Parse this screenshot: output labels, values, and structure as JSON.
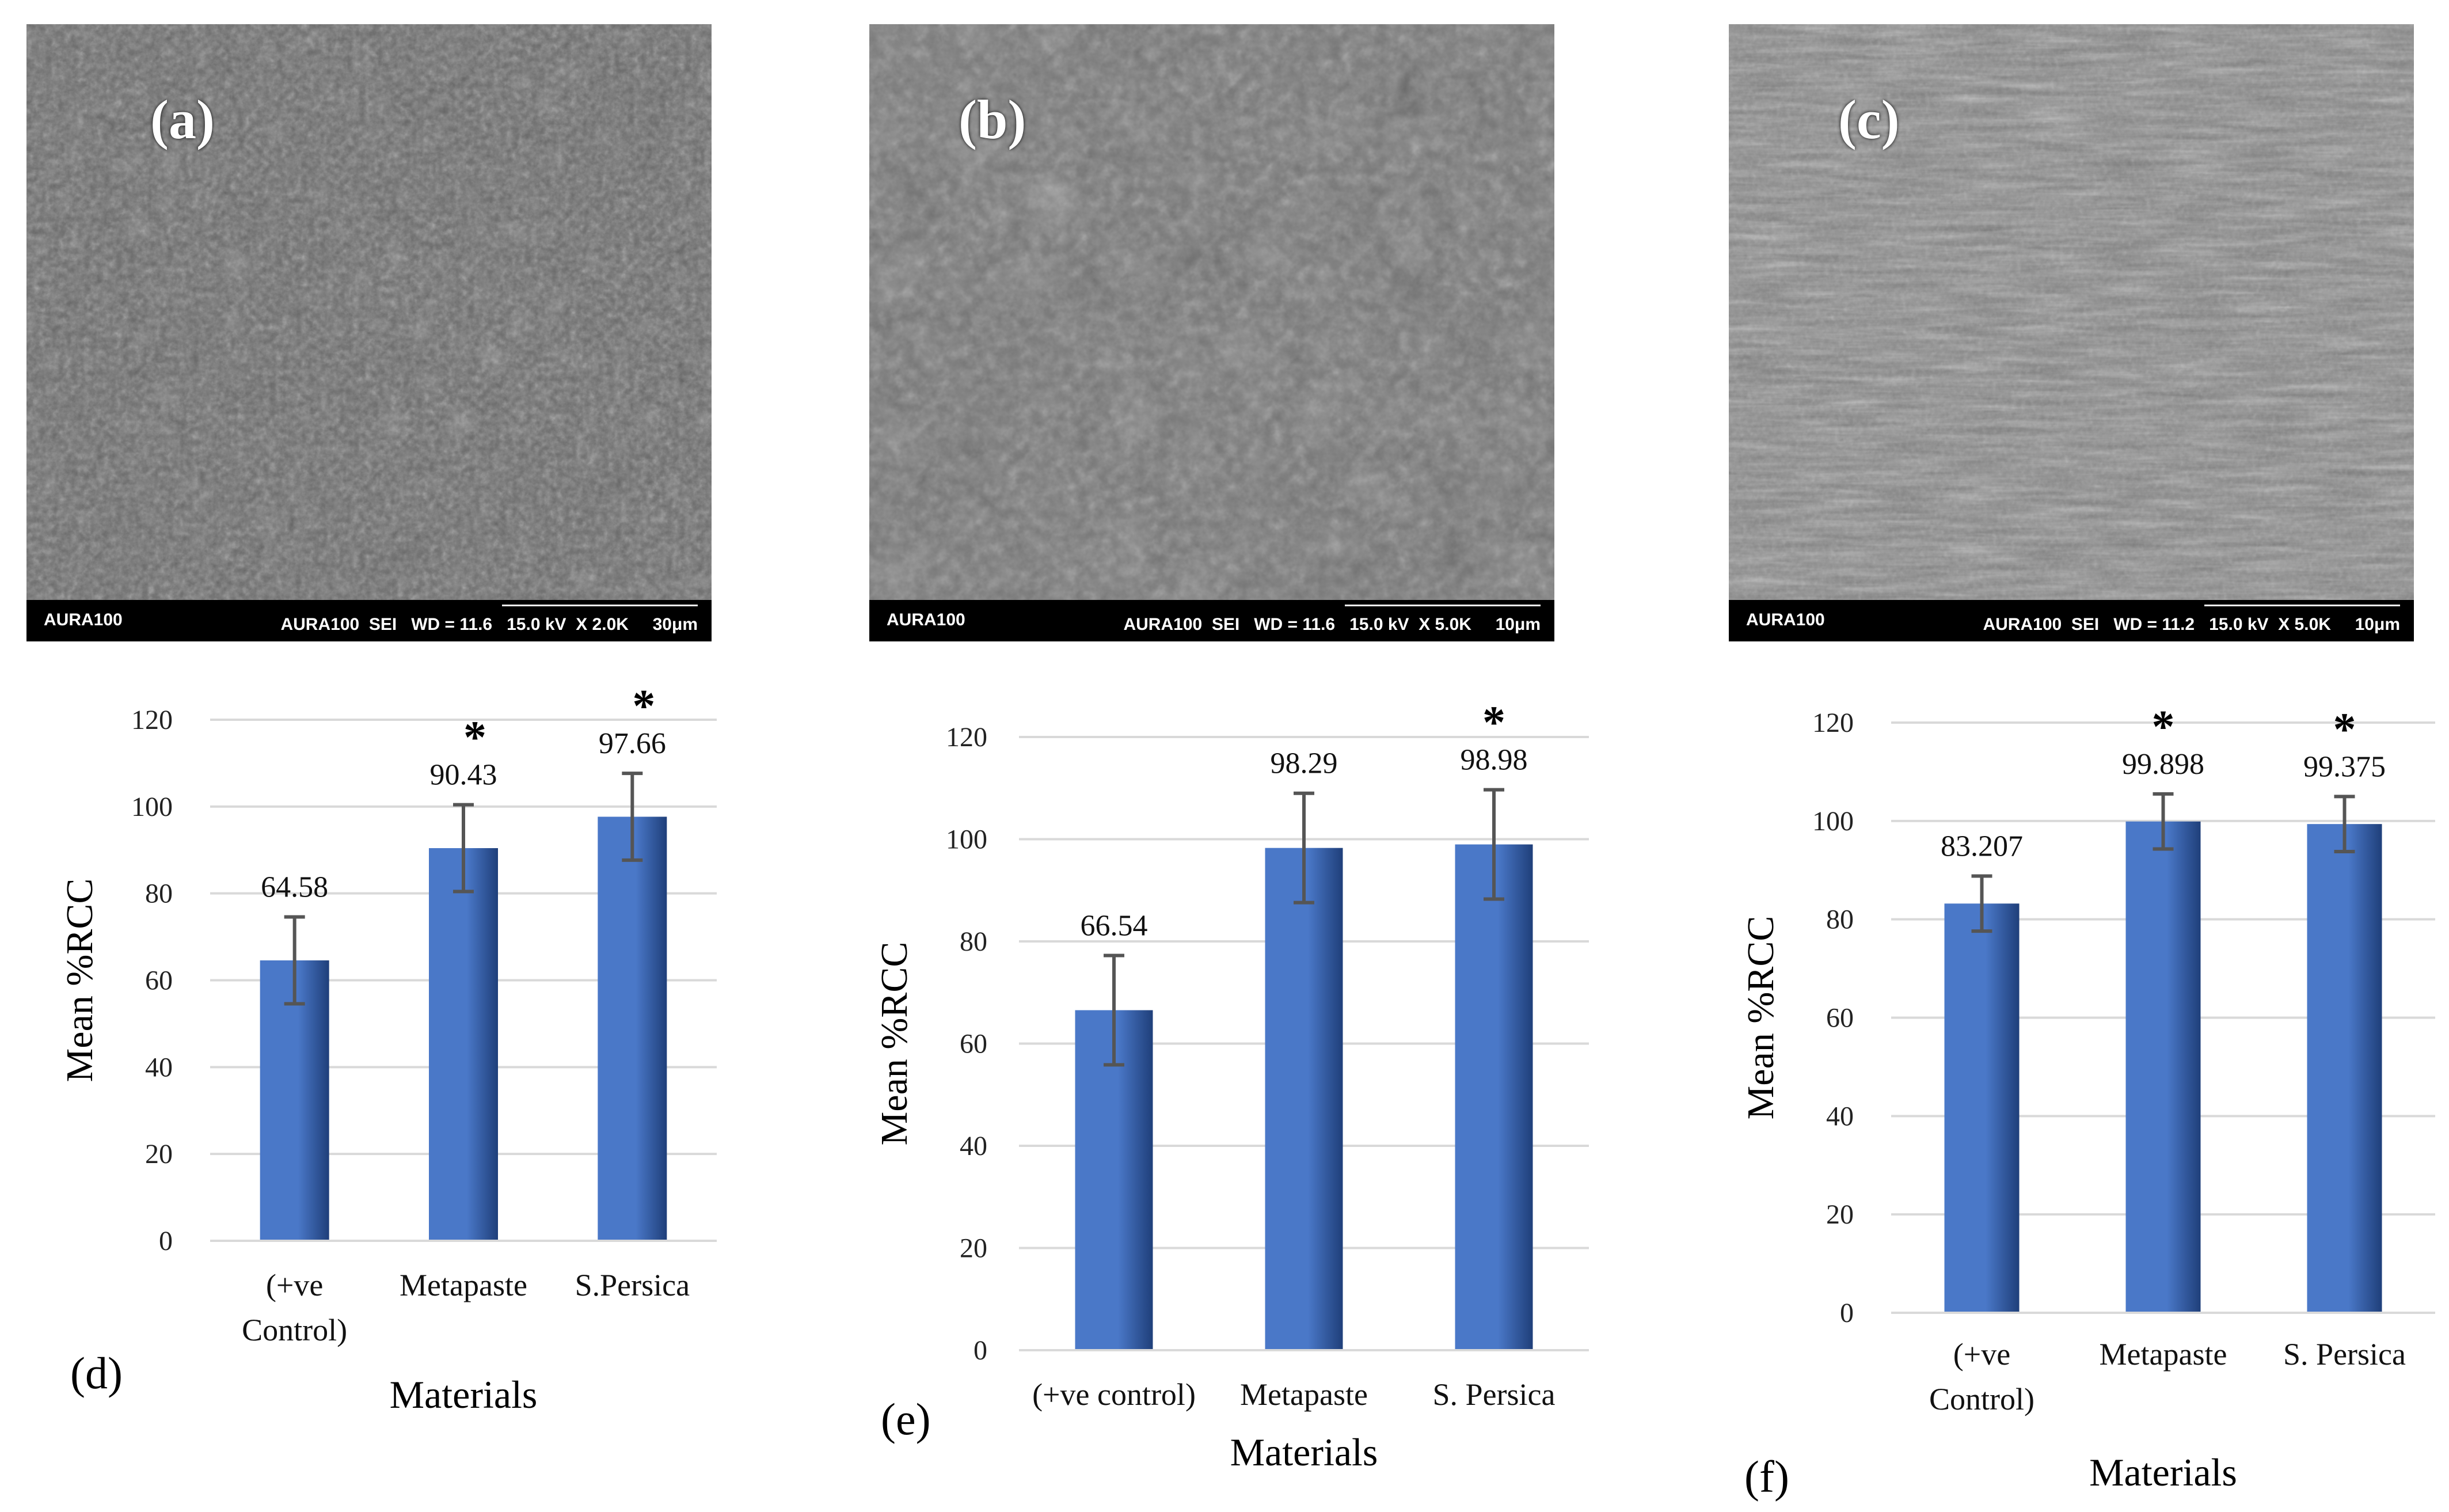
{
  "sem_panels": [
    {
      "label": "(a)",
      "left_text": "AURA100",
      "right_text": "AURA100  SEI   WD = 11.6   15.0 kV  X 2.0K     30μm"
    },
    {
      "label": "(b)",
      "left_text": "AURA100",
      "right_text": "AURA100  SEI   WD = 11.6   15.0 kV  X 5.0K     10μm"
    },
    {
      "label": "(c)",
      "left_text": "AURA100",
      "right_text": "AURA100  SEI   WD = 11.2   15.0 kV  X 5.0K     10μm"
    }
  ],
  "chart_letters": [
    "(d)",
    "(e)",
    "(f)"
  ],
  "colors": {
    "bar_dark": "#1f3f7a",
    "bar_light": "#4a78c8",
    "grid": "#d9d9d9",
    "error": "#555555"
  },
  "chart_data": [
    {
      "type": "bar",
      "title": "",
      "xlabel": "Materials",
      "ylabel": "Mean %RCC",
      "ylim": [
        0,
        120
      ],
      "yticks": [
        "0",
        "20",
        "40",
        "60",
        "80",
        "100",
        "120"
      ],
      "grid": true,
      "categories": [
        [
          "(+ve",
          "Control)"
        ],
        [
          "Metapaste"
        ],
        [
          "S.Persica"
        ]
      ],
      "values": [
        64.58,
        90.43,
        97.66
      ],
      "value_labels": [
        "64.58",
        "90.43",
        "97.66"
      ],
      "errors": [
        10,
        10,
        10
      ],
      "significance": [
        "",
        "*",
        "*"
      ]
    },
    {
      "type": "bar",
      "title": "",
      "xlabel": "Materials",
      "ylabel": "Mean %RCC",
      "ylim": [
        0,
        120
      ],
      "yticks": [
        "0",
        "20",
        "40",
        "60",
        "80",
        "100",
        "120"
      ],
      "grid": true,
      "categories": [
        [
          "(+ve control)"
        ],
        [
          "Metapaste"
        ],
        [
          "S. Persica"
        ]
      ],
      "values": [
        66.54,
        98.29,
        98.98
      ],
      "value_labels": [
        "66.54",
        "98.29",
        "98.98"
      ],
      "errors": [
        10.7,
        10.7,
        10.7
      ],
      "significance": [
        "",
        "",
        "*"
      ]
    },
    {
      "type": "bar",
      "title": "",
      "xlabel": "Materials",
      "ylabel": "Mean %RCC",
      "ylim": [
        0,
        120
      ],
      "yticks": [
        "0",
        "20",
        "40",
        "60",
        "80",
        "100",
        "120"
      ],
      "grid": true,
      "categories": [
        [
          "(+ve",
          "Control)"
        ],
        [
          "Metapaste"
        ],
        [
          "S. Persica"
        ]
      ],
      "values": [
        83.207,
        99.898,
        99.375
      ],
      "value_labels": [
        "83.207",
        "99.898",
        "99.375"
      ],
      "errors": [
        5.6,
        5.6,
        5.6
      ],
      "significance": [
        "",
        "*",
        "*"
      ]
    }
  ]
}
